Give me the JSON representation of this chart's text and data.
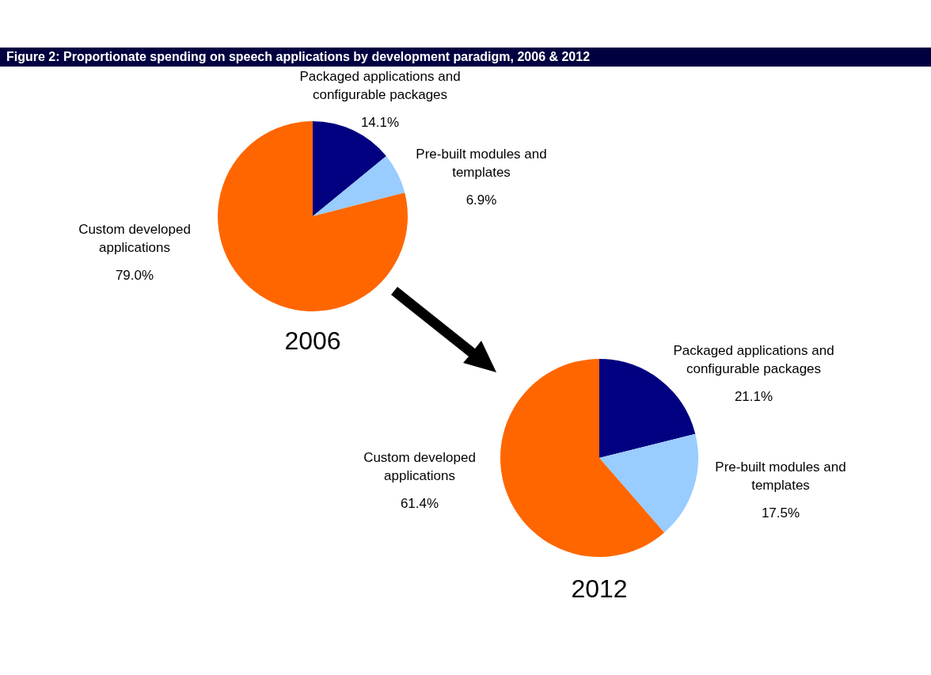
{
  "chart_data": [
    {
      "type": "other",
      "title": "Figure 2: Proportionate spending on speech applications by development paradigm, 2006 & 2012"
    },
    {
      "type": "pie",
      "title": "2006",
      "categories": [
        "Packaged applications and configurable packages",
        "Pre-built modules and templates",
        "Custom developed applications"
      ],
      "values": [
        14.1,
        6.9,
        79.0
      ],
      "value_labels": [
        "14.1%",
        "6.9%",
        "79.0%"
      ],
      "colors": [
        "#000080",
        "#99ccff",
        "#ff6600"
      ],
      "legend": false
    },
    {
      "type": "pie",
      "title": "2012",
      "categories": [
        "Packaged applications and configurable packages",
        "Pre-built modules and templates",
        "Custom developed applications"
      ],
      "values": [
        21.1,
        17.5,
        61.4
      ],
      "value_labels": [
        "21.1%",
        "17.5%",
        "61.4%"
      ],
      "colors": [
        "#000080",
        "#99ccff",
        "#ff6600"
      ],
      "legend": false
    }
  ]
}
